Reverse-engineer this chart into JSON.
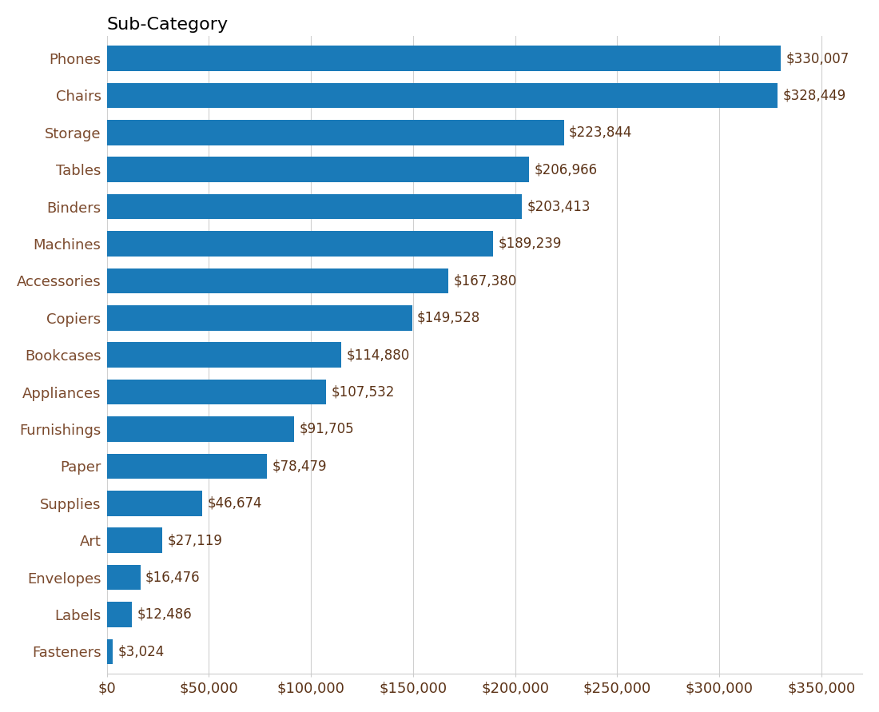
{
  "title": "Sub-Category",
  "categories": [
    "Phones",
    "Chairs",
    "Storage",
    "Tables",
    "Binders",
    "Machines",
    "Accessories",
    "Copiers",
    "Bookcases",
    "Appliances",
    "Furnishings",
    "Paper",
    "Supplies",
    "Art",
    "Envelopes",
    "Labels",
    "Fasteners"
  ],
  "values": [
    330007,
    328449,
    223844,
    206966,
    203413,
    189239,
    167380,
    149528,
    114880,
    107532,
    91705,
    78479,
    46674,
    27119,
    16476,
    12486,
    3024
  ],
  "labels": [
    "$330,007",
    "$328,449",
    "$223,844",
    "$206,966",
    "$203,413",
    "$189,239",
    "$167,380",
    "$149,528",
    "$114,880",
    "$107,532",
    "$91,705",
    "$78,479",
    "$46,674",
    "$27,119",
    "$16,476",
    "$12,486",
    "$3,024"
  ],
  "bar_color": "#1a7ab8",
  "background_color": "#ffffff",
  "title_fontsize": 16,
  "label_fontsize": 13,
  "tick_fontsize": 13,
  "bar_label_fontsize": 12,
  "xlim": [
    0,
    370000
  ],
  "xticks": [
    0,
    50000,
    100000,
    150000,
    200000,
    250000,
    300000,
    350000
  ],
  "xtick_labels": [
    "$0",
    "$50,000",
    "$100,000",
    "$150,000",
    "$200,000",
    "$250,000",
    "$300,000",
    "$350,000"
  ],
  "category_label_color": "#7B4A2D",
  "bar_label_color": "#5C3317",
  "axis_label_color": "#5C3317"
}
